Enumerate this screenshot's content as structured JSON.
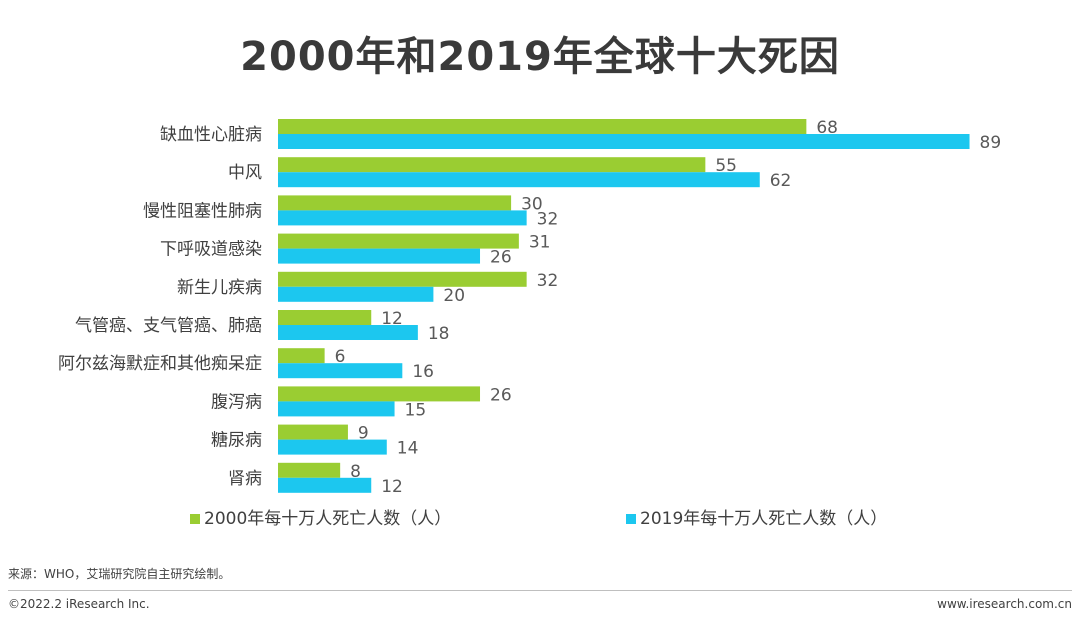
{
  "chart_data": {
    "type": "bar",
    "orientation": "horizontal",
    "title": "2000年和2019年全球十大死因",
    "categories": [
      "缺血性心脏病",
      "中风",
      "慢性阻塞性肺病",
      "下呼吸道感染",
      "新生儿疾病",
      "气管癌、支气管癌、肺癌",
      "阿尔兹海默症和其他痴呆症",
      "腹泻病",
      "糖尿病",
      "肾病"
    ],
    "series": [
      {
        "name": "2000年每十万人死亡人数（人）",
        "color": "#9ACD32",
        "values": [
          68,
          55,
          30,
          31,
          32,
          12,
          6,
          26,
          9,
          8
        ]
      },
      {
        "name": "2019年每十万人死亡人数（人）",
        "color": "#1CC7EF",
        "values": [
          89,
          62,
          32,
          26,
          20,
          18,
          16,
          15,
          14,
          12
        ]
      }
    ],
    "xlim": [
      0,
      100
    ],
    "grid": false,
    "legend_position": "bottom"
  },
  "footer": {
    "source": "来源：WHO，艾瑞研究院自主研究绘制。",
    "copyright": "©2022.2 iResearch Inc.",
    "website": "www.iresearch.com.cn"
  }
}
